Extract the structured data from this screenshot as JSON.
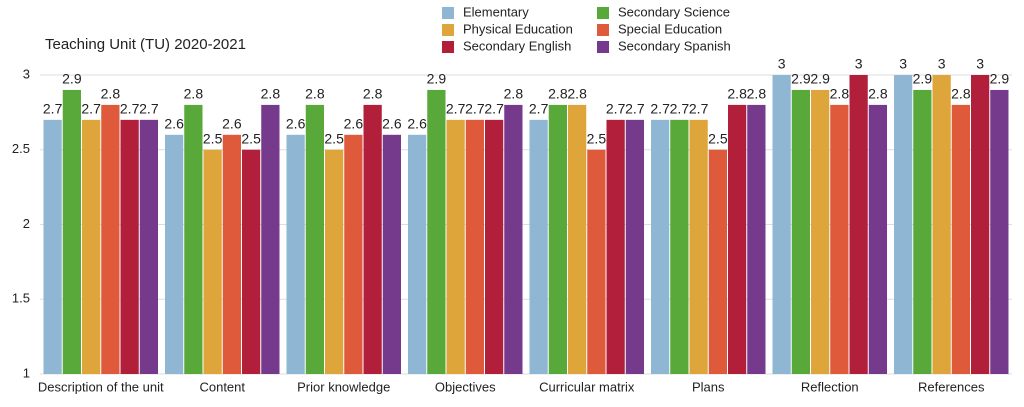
{
  "chart_data": {
    "type": "bar",
    "title": "Teaching Unit (TU) 2020-2021",
    "categories": [
      "Description of the unit",
      "Content",
      "Prior knowledge",
      "Objectives",
      "Curricular matrix",
      "Plans",
      "Reflection",
      "References"
    ],
    "series": [
      {
        "name": "Elementary",
        "color": "#8fb6d2",
        "values": [
          2.7,
          2.6,
          2.6,
          2.6,
          2.7,
          2.7,
          3,
          3
        ]
      },
      {
        "name": "Secondary Science",
        "color": "#58a83a",
        "values": [
          2.9,
          2.8,
          2.8,
          2.9,
          2.8,
          2.7,
          2.9,
          2.9
        ]
      },
      {
        "name": "Physical Education",
        "color": "#dea53a",
        "values": [
          2.7,
          2.5,
          2.5,
          2.7,
          2.8,
          2.7,
          2.9,
          3
        ]
      },
      {
        "name": "Special Education",
        "color": "#de5a3a",
        "values": [
          2.8,
          2.6,
          2.6,
          2.7,
          2.5,
          2.5,
          2.8,
          2.8
        ]
      },
      {
        "name": "Secondary English",
        "color": "#b21f3a",
        "values": [
          2.7,
          2.5,
          2.8,
          2.7,
          2.7,
          2.8,
          3,
          3
        ]
      },
      {
        "name": "Secondary Spanish",
        "color": "#763a8c",
        "values": [
          2.7,
          2.8,
          2.6,
          2.8,
          2.7,
          2.8,
          2.8,
          2.9
        ]
      }
    ],
    "ylim": [
      1,
      3
    ],
    "yticks": [
      1,
      1.5,
      2,
      2.5,
      3
    ],
    "grid": true
  }
}
